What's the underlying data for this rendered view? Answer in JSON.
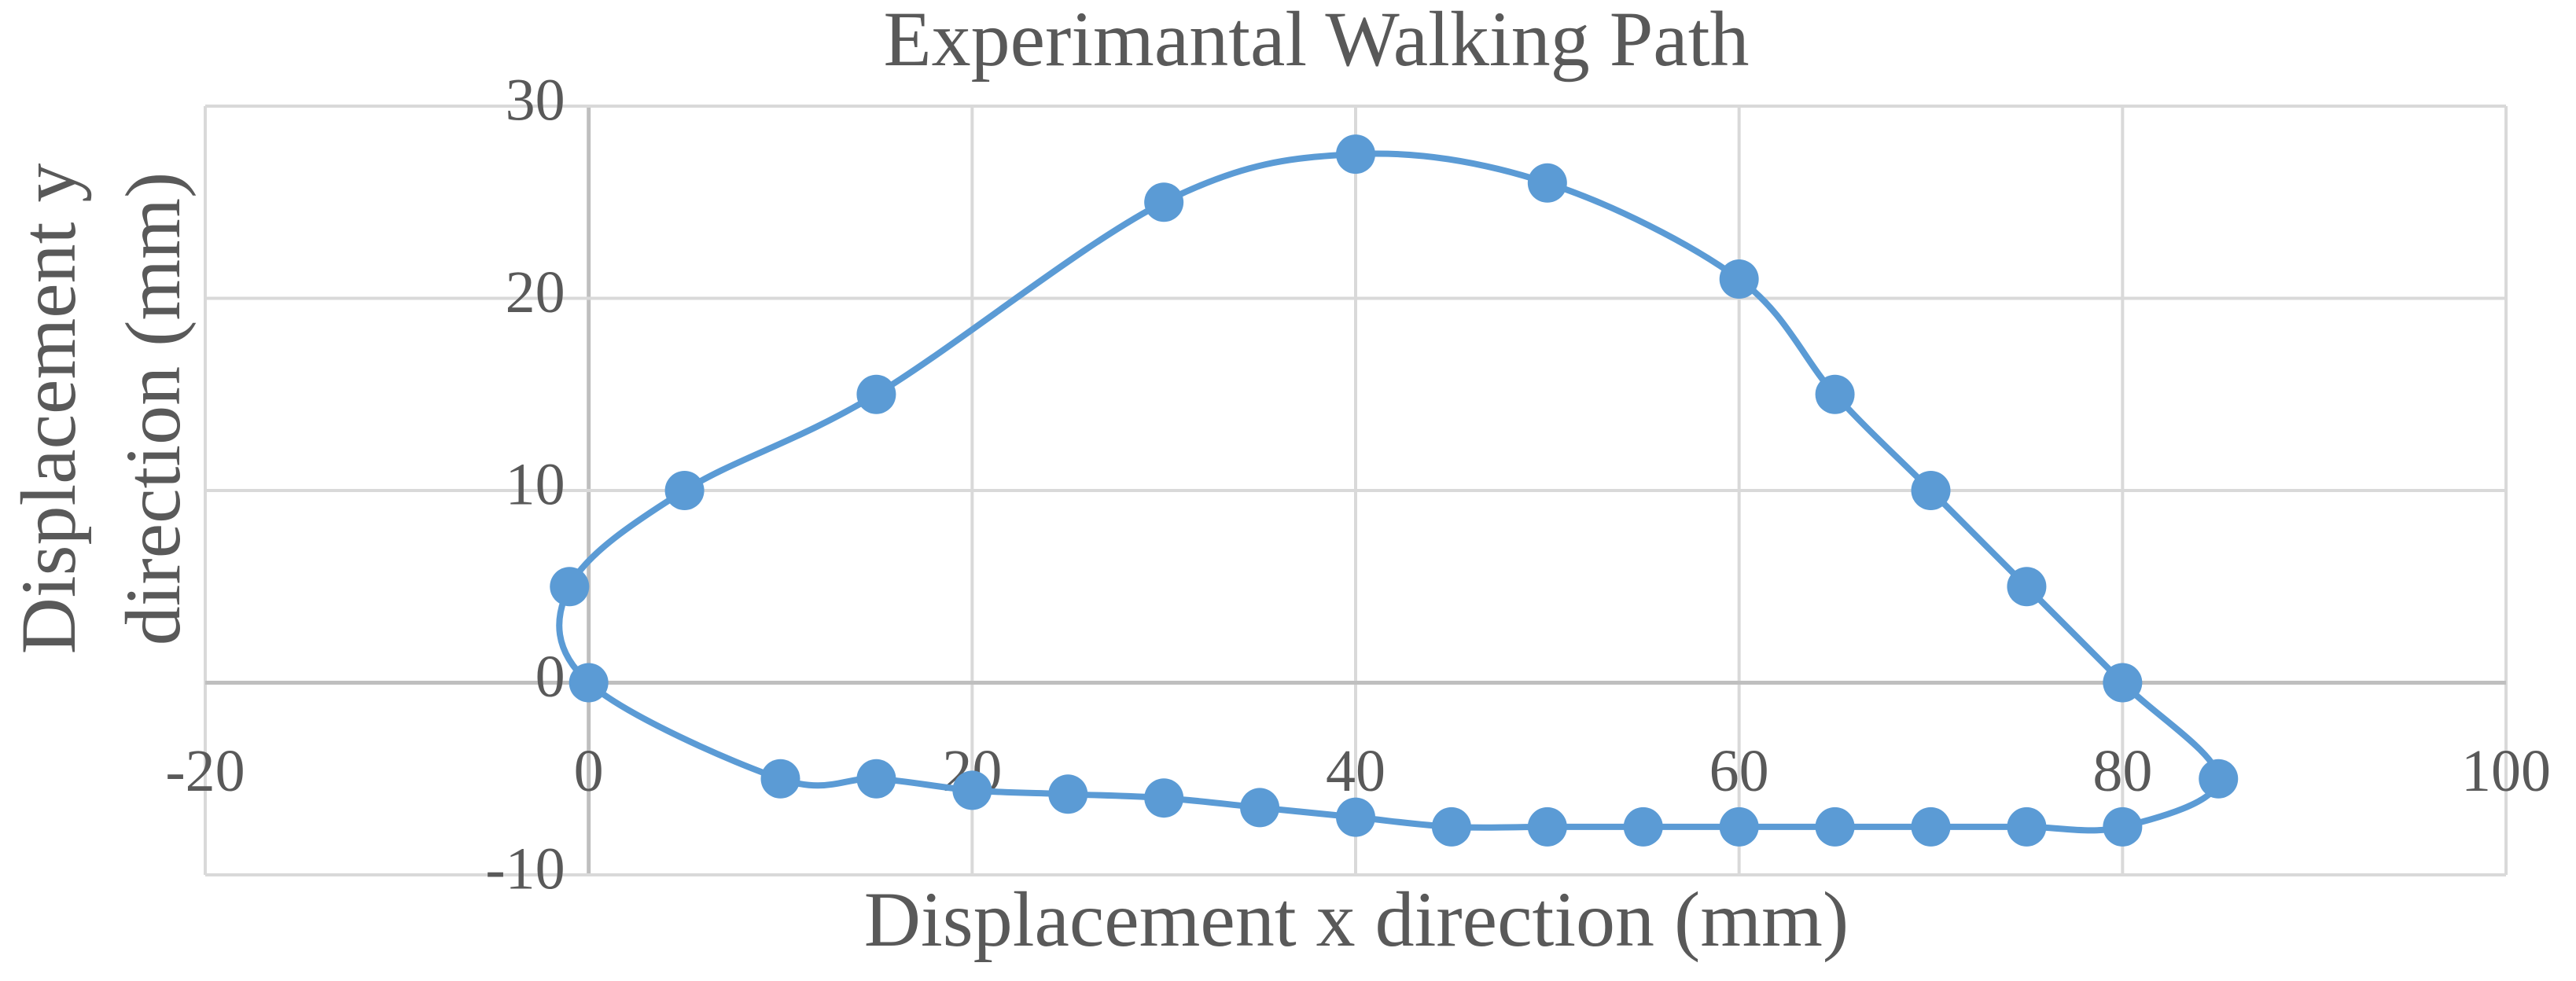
{
  "chart_data": {
    "type": "scatter",
    "title": "Experimantal Walking Path",
    "xlabel": "Displacement x direction (mm)",
    "ylabel": [
      "Displacement y",
      "direction (mm)"
    ],
    "xlim": [
      -20,
      100
    ],
    "ylim": [
      -10,
      30
    ],
    "xticks": [
      -20,
      0,
      20,
      40,
      60,
      80,
      100
    ],
    "yticks": [
      -10,
      0,
      10,
      20,
      30
    ],
    "grid": true,
    "smooth": true,
    "closed": true,
    "series": [
      {
        "color": "#5b9bd5",
        "x": [
          -1,
          0,
          10,
          15,
          20,
          25,
          30,
          35,
          40,
          45,
          50,
          55,
          60,
          65,
          70,
          75,
          80,
          85,
          80,
          75,
          70,
          65,
          60,
          50,
          40,
          30,
          15,
          5
        ],
        "values": [
          5,
          0,
          -5,
          -5,
          -5.6,
          -5.8,
          -6,
          -6.5,
          -7,
          -7.5,
          -7.5,
          -7.5,
          -7.5,
          -7.5,
          -7.5,
          -7.5,
          -7.5,
          -5,
          0,
          5,
          10,
          15,
          21,
          26,
          27.5,
          25,
          15,
          10
        ]
      }
    ]
  }
}
